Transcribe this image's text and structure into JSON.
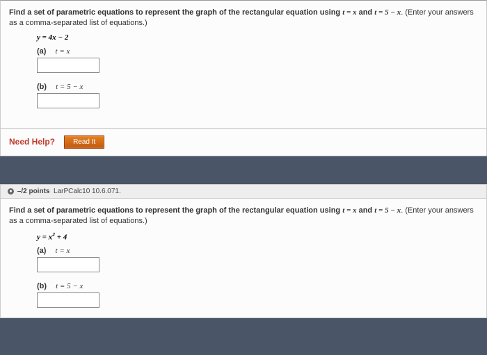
{
  "q1": {
    "prompt_bold": "Find a set of parametric equations to represent the graph of the rectangular equation using ",
    "prompt_eq1": "t = x",
    "prompt_and": " and ",
    "prompt_eq2": "t = 5 − x",
    "prompt_tail": ". (Enter your answers as a comma-separated list of equations.)",
    "equation": "y = 4x − 2",
    "part_a_label": "(a)",
    "part_a_eq": "t = x",
    "part_b_label": "(b)",
    "part_b_eq": "t = 5 − x",
    "need_help": "Need Help?",
    "read_it": "Read It"
  },
  "q2": {
    "points_prefix": "–/2 points",
    "points_ref": "LarPCalc10 10.6.071.",
    "prompt_bold": "Find a set of parametric equations to represent the graph of the rectangular equation using ",
    "prompt_eq1": "t = x",
    "prompt_and": " and ",
    "prompt_eq2": "t = 5 − x",
    "prompt_tail": ". (Enter your answers as a comma-separated list of equations.)",
    "equation_pre": "y = x",
    "equation_sup": "2",
    "equation_post": " + 4",
    "part_a_label": "(a)",
    "part_a_eq": "t = x",
    "part_b_label": "(b)",
    "part_b_eq": "t = 5 − x"
  },
  "colors": {
    "page_bg": "#4a5568",
    "panel_bg": "#fbfbfb",
    "need_help_color": "#c0392b",
    "read_it_bg": "#d35400"
  }
}
